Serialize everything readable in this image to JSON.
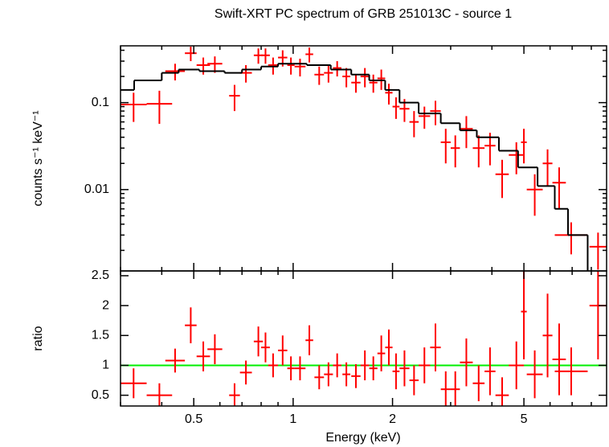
{
  "chart_data": [
    {
      "type": "errorbar",
      "title": "Swift-XRT PC spectrum of GRB 251013C - source 1",
      "ylabel": "counts s⁻¹ keV⁻¹",
      "xscale": "log",
      "yscale": "log",
      "xlim": [
        0.3,
        8.9
      ],
      "ylim": [
        0.00116,
        0.45
      ],
      "xminor_ticks": [
        0.3,
        0.4,
        0.6,
        0.7,
        0.8,
        0.9,
        3,
        4,
        6,
        7,
        8
      ],
      "yticks": [
        0.01,
        0.1
      ],
      "yminor_ticks": [
        0.002,
        0.003,
        0.004,
        0.005,
        0.006,
        0.007,
        0.008,
        0.009,
        0.02,
        0.03,
        0.04,
        0.05,
        0.06,
        0.07,
        0.08,
        0.09,
        0.2,
        0.3,
        0.4
      ],
      "series": [
        {
          "color": "#ff0000",
          "x_lo": [
            0.3,
            0.36,
            0.41,
            0.47,
            0.51,
            0.55,
            0.64,
            0.69,
            0.76,
            0.8,
            0.84,
            0.9,
            0.96,
            1.01,
            1.09,
            1.16,
            1.24,
            1.32,
            1.41,
            1.5,
            1.6,
            1.7,
            1.8,
            1.9,
            2.0,
            2.1,
            2.25,
            2.4,
            2.6,
            2.8,
            3.0,
            3.2,
            3.5,
            3.8,
            4.1,
            4.5,
            4.9,
            5.1,
            5.7,
            6.1,
            6.2,
            7.9
          ],
          "x_hi": [
            0.36,
            0.43,
            0.47,
            0.51,
            0.56,
            0.61,
            0.69,
            0.75,
            0.81,
            0.85,
            0.9,
            0.96,
            1.01,
            1.09,
            1.15,
            1.24,
            1.32,
            1.4,
            1.49,
            1.6,
            1.7,
            1.8,
            1.9,
            2.0,
            2.1,
            2.25,
            2.4,
            2.6,
            2.8,
            3.0,
            3.2,
            3.5,
            3.8,
            4.1,
            4.5,
            5.0,
            5.1,
            5.7,
            6.1,
            6.7,
            7.8,
            8.9
          ],
          "values": [
            0.095,
            0.097,
            0.23,
            0.37,
            0.27,
            0.28,
            0.12,
            0.22,
            0.35,
            0.35,
            0.27,
            0.33,
            0.27,
            0.26,
            0.36,
            0.21,
            0.22,
            0.25,
            0.2,
            0.17,
            0.2,
            0.17,
            0.19,
            0.13,
            0.09,
            0.085,
            0.06,
            0.07,
            0.08,
            0.035,
            0.03,
            0.05,
            0.03,
            0.032,
            0.015,
            0.025,
            0.035,
            0.01,
            0.02,
            0.012,
            0.003,
            0.0022
          ],
          "errors": [
            0.035,
            0.04,
            0.05,
            0.07,
            0.06,
            0.06,
            0.04,
            0.05,
            0.07,
            0.07,
            0.06,
            0.07,
            0.06,
            0.06,
            0.07,
            0.05,
            0.05,
            0.05,
            0.05,
            0.04,
            0.05,
            0.04,
            0.05,
            0.035,
            0.025,
            0.025,
            0.02,
            0.02,
            0.025,
            0.015,
            0.012,
            0.02,
            0.012,
            0.013,
            0.007,
            0.01,
            0.015,
            0.005,
            0.009,
            0.006,
            0.0012,
            0.001
          ]
        },
        {
          "color": "#000000",
          "bins": [
            0.3,
            0.33,
            0.4,
            0.45,
            0.52,
            0.62,
            0.7,
            0.8,
            0.9,
            1.0,
            1.1,
            1.3,
            1.5,
            1.7,
            1.9,
            2.1,
            2.4,
            2.8,
            3.2,
            3.6,
            4.2,
            4.8,
            5.5,
            6.2,
            6.8,
            7.8,
            8.9
          ],
          "values": [
            0.14,
            0.18,
            0.22,
            0.24,
            0.23,
            0.22,
            0.24,
            0.26,
            0.28,
            0.28,
            0.27,
            0.24,
            0.21,
            0.18,
            0.14,
            0.1,
            0.075,
            0.058,
            0.048,
            0.04,
            0.028,
            0.018,
            0.011,
            0.006,
            0.003,
            0.001
          ]
        }
      ]
    },
    {
      "type": "errorbar",
      "xlabel": "Energy (keV)",
      "ylabel": "ratio",
      "xscale": "log",
      "xlim": [
        0.3,
        8.9
      ],
      "ylim": [
        0.32,
        2.58
      ],
      "xticks": [
        0.5,
        1,
        2,
        5
      ],
      "yticks": [
        0.5,
        1,
        1.5,
        2,
        2.5
      ],
      "reference_line": 1,
      "reference_color": "#00ee00",
      "series": [
        {
          "color": "#ff0000",
          "values": [
            0.7,
            0.5,
            1.08,
            1.67,
            1.15,
            1.27,
            0.5,
            0.88,
            1.4,
            1.3,
            1.0,
            1.25,
            0.95,
            0.95,
            1.42,
            0.8,
            0.85,
            1.0,
            0.85,
            0.82,
            1.0,
            0.95,
            1.2,
            1.3,
            0.9,
            0.95,
            0.75,
            1.0,
            1.3,
            0.6,
            0.6,
            1.05,
            0.7,
            0.9,
            0.5,
            1.0,
            1.9,
            0.85,
            1.5,
            1.1,
            0.9,
            2.0
          ],
          "errors": [
            0.25,
            0.2,
            0.2,
            0.3,
            0.25,
            0.25,
            0.2,
            0.2,
            0.25,
            0.25,
            0.2,
            0.25,
            0.2,
            0.2,
            0.25,
            0.2,
            0.2,
            0.2,
            0.2,
            0.2,
            0.25,
            0.2,
            0.3,
            0.3,
            0.3,
            0.3,
            0.25,
            0.3,
            0.4,
            0.3,
            0.3,
            0.4,
            0.3,
            0.4,
            0.3,
            0.4,
            0.8,
            0.4,
            0.7,
            0.6,
            0.4,
            0.9
          ]
        }
      ]
    }
  ]
}
